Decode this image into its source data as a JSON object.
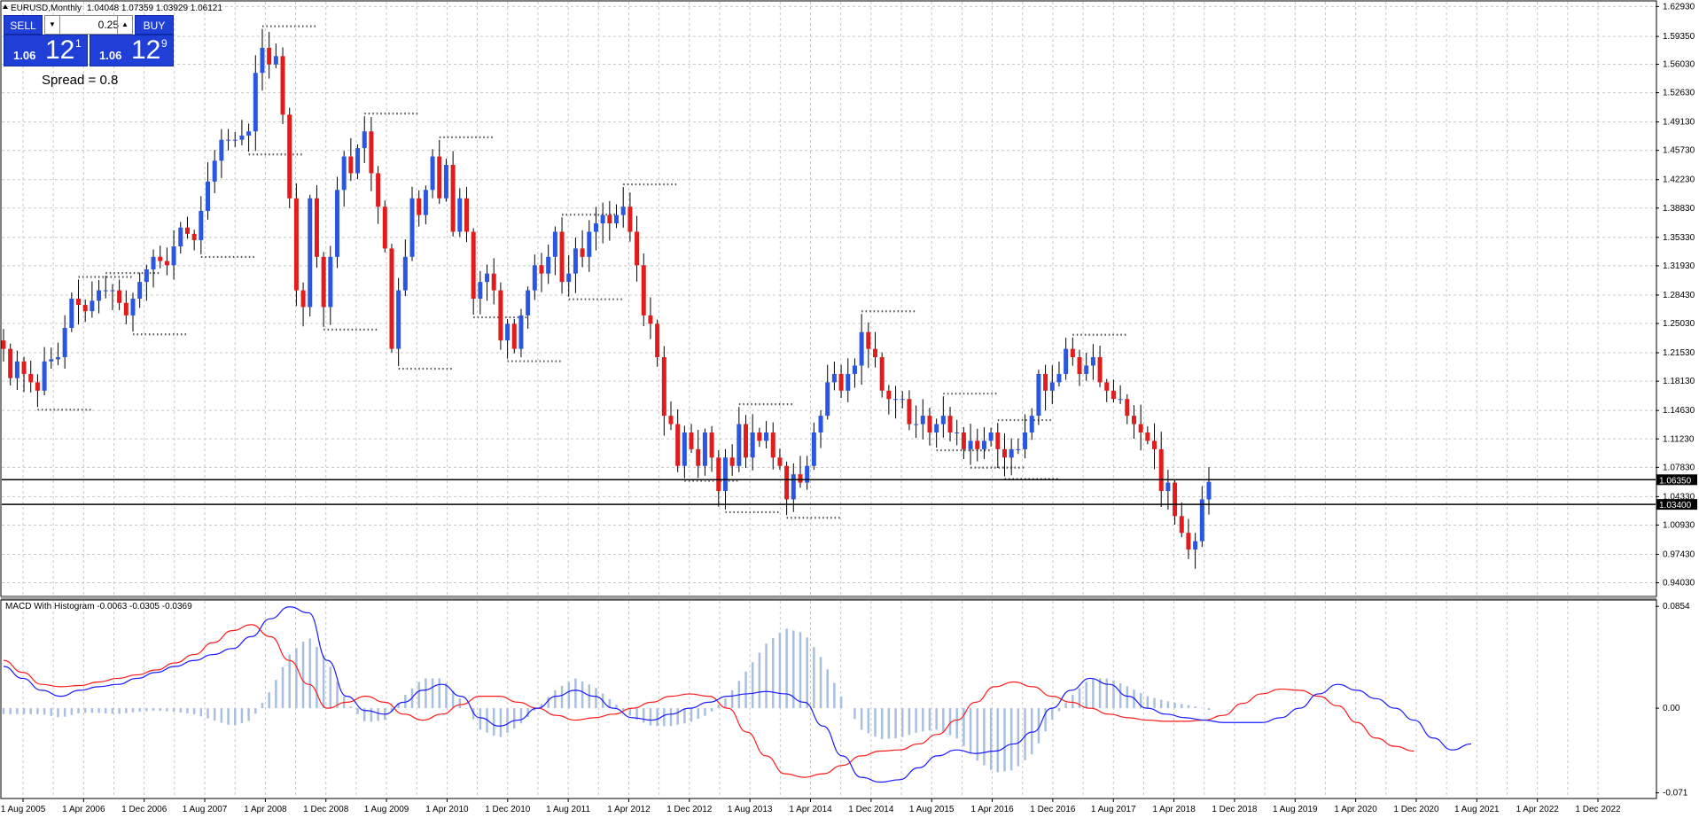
{
  "header": {
    "symbol_title": "EURUSD,Monthly",
    "ohlc": "1.04048 1.07359 1.03929 1.06121"
  },
  "trade_panel": {
    "sell_label": "SELL",
    "buy_label": "BUY",
    "lot_value": "0.25",
    "sell_price_prefix": "1.06",
    "sell_price_main": "12",
    "sell_price_point": "1",
    "buy_price_prefix": "1.06",
    "buy_price_main": "12",
    "buy_price_point": "9",
    "spread_text": "Spread = 0.8"
  },
  "indicator": {
    "title": "MACD With Histogram -0.0063 -0.0305 -0.0369"
  },
  "colors": {
    "bull": "#2a56e0",
    "bear": "#e01c1c",
    "macd_line": "#1a1aff",
    "signal_line": "#ff1a1a",
    "histogram": "#a8bfe0",
    "grid": "#c8c8c8",
    "fractal": "#555555"
  },
  "chart_data": [
    {
      "type": "candlestick",
      "ylim": [
        0.925,
        1.635
      ],
      "y_ticks": [
        "1.62930",
        "1.59350",
        "1.56030",
        "1.52630",
        "1.49130",
        "1.45730",
        "1.42230",
        "1.38830",
        "1.35330",
        "1.31930",
        "1.28430",
        "1.25030",
        "1.21530",
        "1.18130",
        "1.14630",
        "1.11230",
        "1.07830",
        "1.04330",
        "1.00930",
        "0.97430",
        "0.94030"
      ],
      "x_labels": [
        "1 Aug 2005",
        "1 Apr 2006",
        "1 Dec 2006",
        "1 Aug 2007",
        "1 Apr 2008",
        "1 Dec 2008",
        "1 Aug 2009",
        "1 Apr 2010",
        "1 Dec 2010",
        "1 Aug 2011",
        "1 Apr 2012",
        "1 Dec 2012",
        "1 Aug 2013",
        "1 Apr 2014",
        "1 Dec 2014",
        "1 Aug 2015",
        "1 Apr 2016",
        "1 Dec 2016",
        "1 Aug 2017",
        "1 Apr 2018",
        "1 Dec 2018",
        "1 Aug 2019",
        "1 Apr 2020",
        "1 Dec 2020",
        "1 Aug 2021",
        "1 Apr 2022",
        "1 Dec 2022"
      ],
      "horizontal_lines": [
        {
          "value": 1.0635,
          "label": "1.06350"
        },
        {
          "value": 1.034,
          "label": "1.03400"
        }
      ],
      "close_path": [
        [
          0,
          1.22
        ],
        [
          1,
          1.185
        ],
        [
          2,
          1.205
        ],
        [
          3,
          1.19
        ],
        [
          5,
          1.17
        ],
        [
          6,
          1.205
        ],
        [
          8,
          1.21
        ],
        [
          10,
          1.28
        ],
        [
          12,
          1.265
        ],
        [
          14,
          1.29
        ],
        [
          16,
          1.29
        ],
        [
          18,
          1.26
        ],
        [
          20,
          1.3
        ],
        [
          22,
          1.33
        ],
        [
          24,
          1.32
        ],
        [
          26,
          1.365
        ],
        [
          28,
          1.35
        ],
        [
          30,
          1.42
        ],
        [
          32,
          1.47
        ],
        [
          34,
          1.47
        ],
        [
          36,
          1.48
        ],
        [
          37,
          1.55
        ],
        [
          38,
          1.58
        ],
        [
          39,
          1.56
        ],
        [
          40,
          1.57
        ],
        [
          41,
          1.5
        ],
        [
          42,
          1.4
        ],
        [
          43,
          1.29
        ],
        [
          44,
          1.27
        ],
        [
          45,
          1.4
        ],
        [
          46,
          1.33
        ],
        [
          47,
          1.27
        ],
        [
          48,
          1.33
        ],
        [
          49,
          1.41
        ],
        [
          50,
          1.45
        ],
        [
          51,
          1.43
        ],
        [
          52,
          1.46
        ],
        [
          53,
          1.48
        ],
        [
          54,
          1.43
        ],
        [
          55,
          1.39
        ],
        [
          56,
          1.34
        ],
        [
          57,
          1.22
        ],
        [
          58,
          1.29
        ],
        [
          59,
          1.33
        ],
        [
          60,
          1.4
        ],
        [
          61,
          1.38
        ],
        [
          62,
          1.41
        ],
        [
          63,
          1.45
        ],
        [
          64,
          1.4
        ],
        [
          65,
          1.44
        ],
        [
          66,
          1.36
        ],
        [
          67,
          1.4
        ],
        [
          68,
          1.36
        ],
        [
          69,
          1.28
        ],
        [
          70,
          1.3
        ],
        [
          71,
          1.31
        ],
        [
          72,
          1.29
        ],
        [
          73,
          1.23
        ],
        [
          74,
          1.25
        ],
        [
          75,
          1.22
        ],
        [
          76,
          1.26
        ],
        [
          77,
          1.29
        ],
        [
          78,
          1.32
        ],
        [
          79,
          1.31
        ],
        [
          80,
          1.33
        ],
        [
          81,
          1.36
        ],
        [
          82,
          1.3
        ],
        [
          83,
          1.31
        ],
        [
          84,
          1.34
        ],
        [
          85,
          1.33
        ],
        [
          86,
          1.36
        ],
        [
          87,
          1.37
        ],
        [
          88,
          1.38
        ],
        [
          89,
          1.37
        ],
        [
          90,
          1.38
        ],
        [
          91,
          1.39
        ],
        [
          92,
          1.36
        ],
        [
          93,
          1.32
        ],
        [
          94,
          1.26
        ],
        [
          95,
          1.25
        ],
        [
          96,
          1.21
        ],
        [
          97,
          1.14
        ],
        [
          98,
          1.13
        ],
        [
          99,
          1.08
        ],
        [
          100,
          1.12
        ],
        [
          101,
          1.1
        ],
        [
          102,
          1.08
        ],
        [
          103,
          1.12
        ],
        [
          104,
          1.09
        ],
        [
          105,
          1.05
        ],
        [
          106,
          1.09
        ],
        [
          107,
          1.08
        ],
        [
          108,
          1.13
        ],
        [
          109,
          1.09
        ],
        [
          110,
          1.12
        ],
        [
          111,
          1.11
        ],
        [
          112,
          1.12
        ],
        [
          113,
          1.09
        ],
        [
          114,
          1.08
        ],
        [
          115,
          1.04
        ],
        [
          116,
          1.07
        ],
        [
          117,
          1.06
        ],
        [
          118,
          1.08
        ],
        [
          119,
          1.12
        ],
        [
          120,
          1.14
        ],
        [
          121,
          1.18
        ],
        [
          122,
          1.19
        ],
        [
          123,
          1.17
        ],
        [
          124,
          1.19
        ],
        [
          125,
          1.2
        ],
        [
          126,
          1.24
        ],
        [
          127,
          1.22
        ],
        [
          128,
          1.21
        ],
        [
          129,
          1.17
        ],
        [
          130,
          1.16
        ],
        [
          131,
          1.16
        ],
        [
          132,
          1.16
        ],
        [
          133,
          1.13
        ],
        [
          134,
          1.13
        ],
        [
          135,
          1.14
        ],
        [
          136,
          1.12
        ],
        [
          137,
          1.13
        ],
        [
          138,
          1.14
        ],
        [
          139,
          1.12
        ],
        [
          140,
          1.12
        ],
        [
          141,
          1.1
        ],
        [
          142,
          1.11
        ],
        [
          143,
          1.1
        ],
        [
          144,
          1.11
        ],
        [
          145,
          1.12
        ],
        [
          146,
          1.1
        ],
        [
          147,
          1.09
        ],
        [
          148,
          1.1
        ],
        [
          149,
          1.1
        ],
        [
          150,
          1.12
        ],
        [
          151,
          1.14
        ],
        [
          152,
          1.19
        ],
        [
          153,
          1.17
        ],
        [
          154,
          1.18
        ],
        [
          155,
          1.19
        ],
        [
          156,
          1.22
        ],
        [
          157,
          1.21
        ],
        [
          158,
          1.19
        ],
        [
          159,
          1.2
        ],
        [
          160,
          1.21
        ],
        [
          161,
          1.18
        ],
        [
          162,
          1.17
        ],
        [
          163,
          1.16
        ],
        [
          164,
          1.16
        ],
        [
          165,
          1.14
        ],
        [
          166,
          1.13
        ],
        [
          167,
          1.12
        ],
        [
          168,
          1.11
        ],
        [
          169,
          1.1
        ],
        [
          170,
          1.05
        ],
        [
          171,
          1.06
        ],
        [
          172,
          1.02
        ],
        [
          173,
          1.0
        ],
        [
          174,
          0.98
        ],
        [
          175,
          0.99
        ],
        [
          176,
          1.04
        ],
        [
          177,
          1.061
        ]
      ]
    },
    {
      "type": "line",
      "title": "MACD With Histogram",
      "ylim": [
        -0.075,
        0.09
      ],
      "y_ticks": [
        "0.0854",
        "0.00",
        "-0.071"
      ],
      "series": [
        {
          "name": "MACD",
          "values": [
            0.035,
            0.025,
            0.015,
            0.01,
            0.015,
            0.018,
            0.02,
            0.025,
            0.03,
            0.035,
            0.04,
            0.045,
            0.05,
            0.06,
            0.075,
            0.085,
            0.08,
            0.04,
            0.01,
            -0.002,
            -0.005,
            0.005,
            0.015,
            0.02,
            0.01,
            -0.008,
            -0.015,
            -0.01,
            0.0,
            0.01,
            0.015,
            0.01,
            0.0,
            -0.008,
            -0.01,
            -0.005,
            0.0,
            0.005,
            0.01,
            0.012,
            0.014,
            0.012,
            0.005,
            -0.015,
            -0.04,
            -0.058,
            -0.062,
            -0.06,
            -0.05,
            -0.04,
            -0.035,
            -0.038,
            -0.036,
            -0.03,
            -0.02,
            0.0,
            0.015,
            0.025,
            0.02,
            0.01,
            0.0,
            -0.005,
            -0.008,
            -0.01,
            -0.012,
            -0.012,
            -0.012,
            -0.008,
            0.0,
            0.012,
            0.02,
            0.015,
            0.008,
            0.0,
            -0.01,
            -0.025,
            -0.035,
            -0.03
          ]
        },
        {
          "name": "Signal",
          "values": [
            0.04,
            0.03,
            0.02,
            0.018,
            0.019,
            0.022,
            0.025,
            0.028,
            0.032,
            0.038,
            0.045,
            0.055,
            0.065,
            0.07,
            0.06,
            0.04,
            0.02,
            0.0,
            0.005,
            0.01,
            0.005,
            -0.005,
            -0.01,
            -0.005,
            0.003,
            0.01,
            0.01,
            0.005,
            0.0,
            -0.006,
            -0.01,
            -0.008,
            -0.005,
            0.0,
            0.005,
            0.01,
            0.012,
            0.01,
            0.0,
            -0.02,
            -0.04,
            -0.055,
            -0.058,
            -0.055,
            -0.048,
            -0.04,
            -0.036,
            -0.035,
            -0.03,
            -0.022,
            -0.01,
            0.005,
            0.018,
            0.022,
            0.018,
            0.01,
            0.005,
            0.0,
            -0.005,
            -0.008,
            -0.01,
            -0.011,
            -0.011,
            -0.01,
            -0.006,
            0.004,
            0.012,
            0.016,
            0.015,
            0.01,
            0.002,
            -0.012,
            -0.025,
            -0.032,
            -0.036
          ]
        }
      ]
    }
  ]
}
